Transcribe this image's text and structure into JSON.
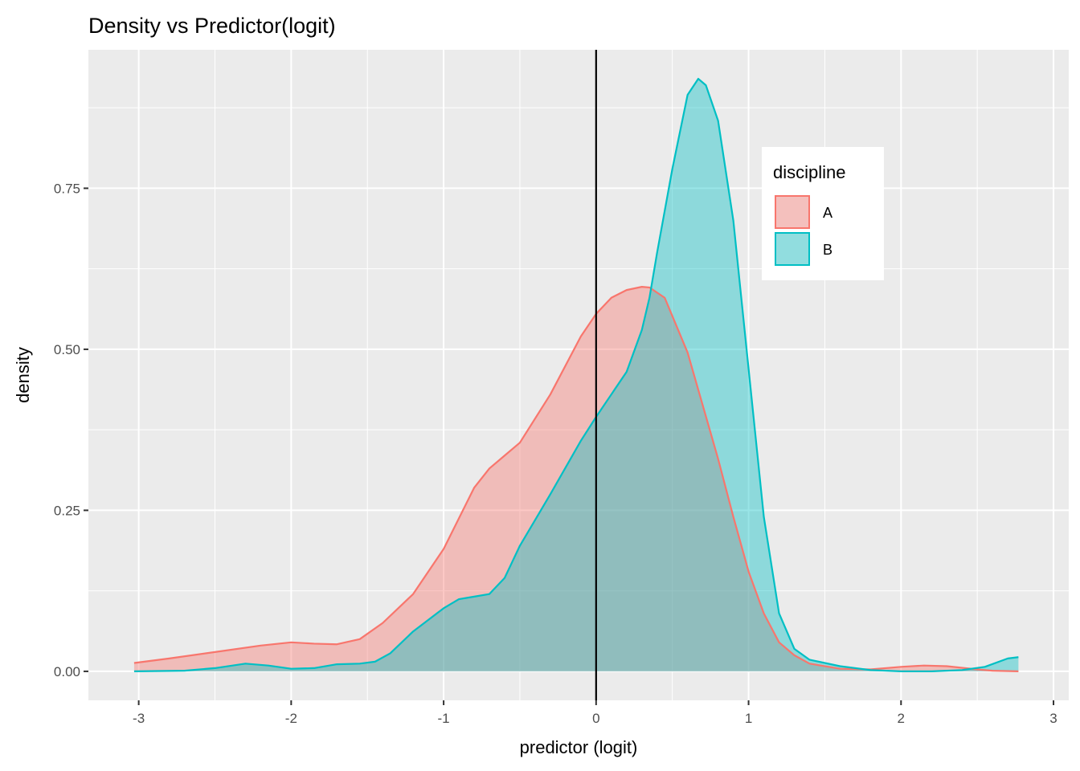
{
  "chart_data": {
    "type": "area",
    "title": "Density vs Predictor(logit)",
    "xlabel": "predictor (logit)",
    "ylabel": "density",
    "xlim": [
      -3.33,
      3.1
    ],
    "ylim": [
      -0.045,
      0.965
    ],
    "x_ticks": [
      -3,
      -2,
      -1,
      0,
      1,
      2,
      3
    ],
    "x_tick_labels": [
      "-3",
      "-2",
      "-1",
      "0",
      "1",
      "2",
      "3"
    ],
    "y_ticks": [
      0,
      0.25,
      0.5,
      0.75
    ],
    "y_tick_labels": [
      "0.00",
      "0.25",
      "0.50",
      "0.75"
    ],
    "grid": true,
    "vline_x": 0,
    "legend": {
      "title": "discipline",
      "placement": "right-inside-top"
    },
    "series": [
      {
        "name": "A",
        "color": "#F8766D",
        "fill": "#F8766D",
        "fill_opacity": 0.4,
        "points": [
          [
            -3.03,
            0.013
          ],
          [
            -2.8,
            0.02
          ],
          [
            -2.5,
            0.03
          ],
          [
            -2.2,
            0.04
          ],
          [
            -2.0,
            0.045
          ],
          [
            -1.85,
            0.043
          ],
          [
            -1.7,
            0.042
          ],
          [
            -1.55,
            0.05
          ],
          [
            -1.4,
            0.075
          ],
          [
            -1.2,
            0.12
          ],
          [
            -1.0,
            0.19
          ],
          [
            -0.8,
            0.285
          ],
          [
            -0.7,
            0.315
          ],
          [
            -0.6,
            0.335
          ],
          [
            -0.5,
            0.355
          ],
          [
            -0.3,
            0.43
          ],
          [
            -0.1,
            0.52
          ],
          [
            0.0,
            0.555
          ],
          [
            0.1,
            0.58
          ],
          [
            0.2,
            0.592
          ],
          [
            0.3,
            0.597
          ],
          [
            0.35,
            0.596
          ],
          [
            0.45,
            0.58
          ],
          [
            0.6,
            0.495
          ],
          [
            0.8,
            0.33
          ],
          [
            0.9,
            0.24
          ],
          [
            1.0,
            0.155
          ],
          [
            1.1,
            0.09
          ],
          [
            1.2,
            0.045
          ],
          [
            1.3,
            0.025
          ],
          [
            1.4,
            0.012
          ],
          [
            1.6,
            0.004
          ],
          [
            1.8,
            0.003
          ],
          [
            2.0,
            0.007
          ],
          [
            2.15,
            0.009
          ],
          [
            2.3,
            0.008
          ],
          [
            2.5,
            0.003
          ],
          [
            2.6,
            0.001
          ],
          [
            2.77,
            0.0
          ]
        ]
      },
      {
        "name": "B",
        "color": "#00BFC4",
        "fill": "#00BFC4",
        "fill_opacity": 0.4,
        "points": [
          [
            -3.03,
            0.0
          ],
          [
            -2.7,
            0.001
          ],
          [
            -2.5,
            0.005
          ],
          [
            -2.3,
            0.012
          ],
          [
            -2.15,
            0.009
          ],
          [
            -2.0,
            0.004
          ],
          [
            -1.85,
            0.005
          ],
          [
            -1.7,
            0.011
          ],
          [
            -1.55,
            0.012
          ],
          [
            -1.45,
            0.015
          ],
          [
            -1.35,
            0.028
          ],
          [
            -1.2,
            0.062
          ],
          [
            -1.0,
            0.098
          ],
          [
            -0.9,
            0.112
          ],
          [
            -0.8,
            0.116
          ],
          [
            -0.7,
            0.12
          ],
          [
            -0.6,
            0.145
          ],
          [
            -0.5,
            0.195
          ],
          [
            -0.3,
            0.275
          ],
          [
            -0.1,
            0.358
          ],
          [
            0.0,
            0.395
          ],
          [
            0.1,
            0.43
          ],
          [
            0.2,
            0.465
          ],
          [
            0.3,
            0.53
          ],
          [
            0.35,
            0.58
          ],
          [
            0.4,
            0.65
          ],
          [
            0.5,
            0.78
          ],
          [
            0.6,
            0.895
          ],
          [
            0.67,
            0.92
          ],
          [
            0.72,
            0.91
          ],
          [
            0.8,
            0.855
          ],
          [
            0.9,
            0.7
          ],
          [
            1.0,
            0.47
          ],
          [
            1.1,
            0.24
          ],
          [
            1.2,
            0.09
          ],
          [
            1.3,
            0.035
          ],
          [
            1.4,
            0.018
          ],
          [
            1.6,
            0.008
          ],
          [
            1.8,
            0.002
          ],
          [
            2.0,
            0.0
          ],
          [
            2.2,
            0.0
          ],
          [
            2.4,
            0.002
          ],
          [
            2.55,
            0.007
          ],
          [
            2.7,
            0.02
          ],
          [
            2.77,
            0.022
          ]
        ]
      }
    ]
  }
}
